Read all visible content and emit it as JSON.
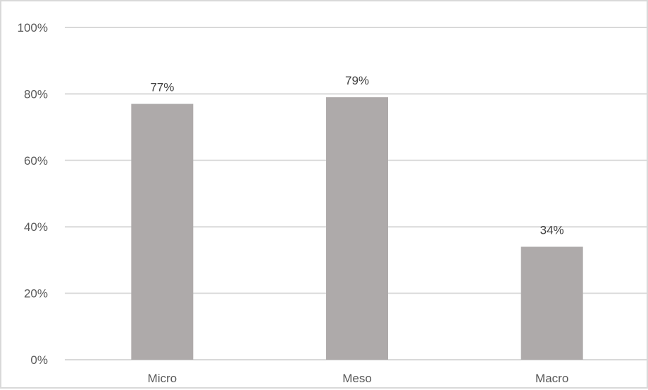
{
  "chart_data": {
    "type": "bar",
    "categories": [
      "Micro",
      "Meso",
      "Macro"
    ],
    "values": [
      77,
      79,
      34
    ],
    "data_labels": [
      "77%",
      "79%",
      "34%"
    ],
    "ylim": [
      0,
      100
    ],
    "yticks": [
      0,
      20,
      40,
      60,
      80,
      100
    ],
    "ytick_labels": [
      "0%",
      "20%",
      "40%",
      "60%",
      "80%",
      "100%"
    ],
    "title": "",
    "xlabel": "",
    "ylabel": "",
    "grid": true,
    "legend": "none",
    "colors": {
      "bar": "#aeaaaa",
      "grid": "#d9d9d9",
      "axis_text": "#595959",
      "data_text": "#404040",
      "frame": "#d9d9d9"
    }
  }
}
